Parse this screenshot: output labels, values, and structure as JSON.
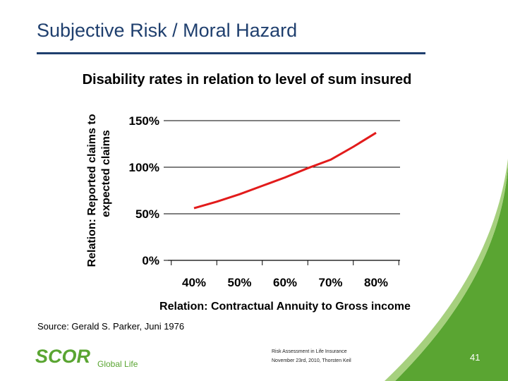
{
  "slide": {
    "title": "Subjective Risk / Moral Hazard",
    "source": "Source: Gerald S. Parker, Juni 1976",
    "footer_line1": "Risk Assessment in Life Insurance",
    "footer_line2": "November 23rd, 2010, Thorsten Keil",
    "page_number": "41",
    "logo_text": "SCOR",
    "logo_subtext": "Global Life"
  },
  "colors": {
    "title": "#1f3f6e",
    "line": "#e21b1b",
    "brand_green": "#5aa532",
    "grid": "#000000"
  },
  "chart_data": {
    "type": "line",
    "title": "Disability rates in relation to level of sum insured",
    "xlabel": "Relation: Contractual Annuity to Gross income",
    "ylabel_line1": "Relation: Reported claims to",
    "ylabel_line2": "expected claims",
    "categories": [
      "40%",
      "50%",
      "60%",
      "70%",
      "80%"
    ],
    "y_ticks": [
      "0%",
      "50%",
      "100%",
      "150%"
    ],
    "ylim": [
      0,
      150
    ],
    "x": [
      40,
      45,
      50,
      55,
      60,
      65,
      70,
      75,
      80
    ],
    "values": [
      56,
      63,
      71,
      80,
      89,
      99,
      108,
      122,
      137
    ],
    "grid": "horizontal"
  }
}
